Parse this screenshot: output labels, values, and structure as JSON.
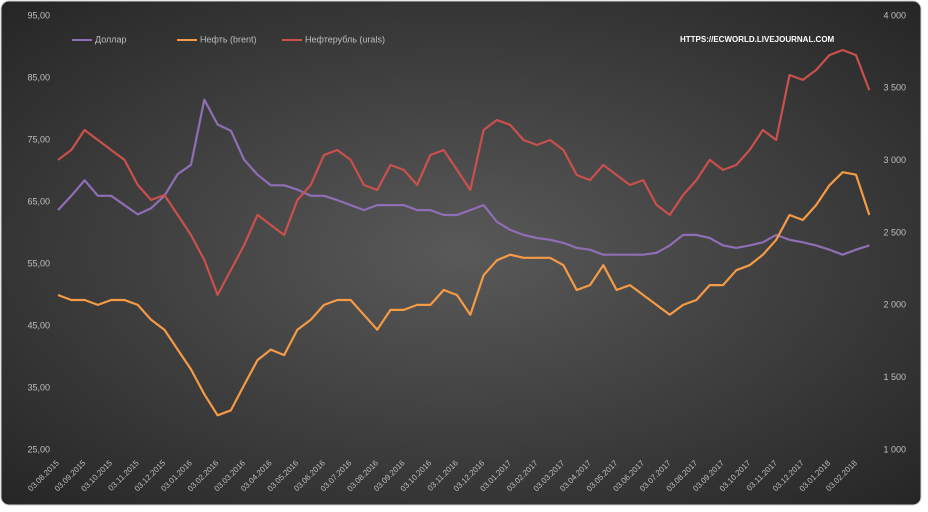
{
  "chart_data": {
    "type": "line",
    "annotation": "HTTPS://ECWORLD.LIVEJOURNAL.COM",
    "categories": [
      "03.08.2015",
      null,
      "03.09.2015",
      null,
      "03.10.2015",
      null,
      "03.11.2015",
      null,
      "03.12.2015",
      null,
      "03.01.2016",
      null,
      "03.02.2016",
      null,
      "03.03.2016",
      null,
      "03.04.2016",
      null,
      "03.05.2016",
      null,
      "03.06.2016",
      null,
      "03.07.2016",
      null,
      "03.08.2016",
      null,
      "03.09.2016",
      null,
      "03.10.2016",
      null,
      "03.11.2016",
      null,
      "03.12.2016",
      null,
      "03.01.2017",
      null,
      "03.02.2017",
      null,
      "03.03.2017",
      null,
      "03.04.2017",
      null,
      "03.05.2017",
      null,
      "03.06.2017",
      null,
      "03.07.2017",
      null,
      "03.08.2017",
      null,
      "03.09.2017",
      null,
      "03.10.2017",
      null,
      "03.11.2017",
      null,
      "03.12.2017",
      null,
      "03.01.2018",
      null,
      "03.02.2018",
      null
    ],
    "series": [
      {
        "name": "Доллар",
        "color": "#8e6fb5",
        "axis": "y",
        "values": [
          63.7,
          66,
          68.5,
          66,
          66,
          64.5,
          63,
          64,
          66,
          69.5,
          71,
          81.5,
          77.5,
          76.5,
          71.8,
          69.4,
          67.7,
          67.7,
          67,
          66,
          66,
          65.3,
          64.5,
          63.7,
          64.5,
          64.5,
          64.5,
          63.7,
          63.7,
          62.9,
          62.9,
          63.7,
          64.5,
          61.8,
          60.5,
          59.7,
          59.2,
          58.9,
          58.4,
          57.6,
          57.3,
          56.5,
          56.5,
          56.5,
          56.5,
          56.8,
          58,
          59.7,
          59.7,
          59.2,
          58,
          57.6,
          58,
          58.5,
          59.7,
          58.9,
          58.5,
          58,
          57.3,
          56.5,
          57.3,
          58
        ]
      },
      {
        "name": "Нефть (brent)",
        "color": "#f59a45",
        "axis": "y",
        "values": [
          50,
          49.2,
          49.2,
          48.4,
          49.2,
          49.2,
          48.4,
          46,
          44.4,
          41.2,
          38,
          34,
          30.6,
          31.4,
          35.5,
          39.5,
          41.2,
          40.3,
          44.4,
          46,
          48.4,
          49.2,
          49.2,
          46.8,
          44.4,
          47.6,
          47.6,
          48.4,
          48.4,
          50.8,
          50,
          46.8,
          53.2,
          55.6,
          56.5,
          56,
          56,
          56,
          54.8,
          50.8,
          51.6,
          54.8,
          50.8,
          51.6,
          50,
          48.4,
          46.8,
          48.4,
          49.2,
          51.6,
          51.6,
          54,
          54.8,
          56.5,
          58.9,
          62.9,
          62.1,
          64.5,
          67.7,
          69.8,
          69.4,
          62.9
        ]
      },
      {
        "name": "Нефтерубль (urals)",
        "color": "#c9504c",
        "axis": "y2",
        "values": [
          3005,
          3074,
          3212,
          3143,
          3074,
          3005,
          2832,
          2728,
          2763,
          2625,
          2486,
          2314,
          2072,
          2245,
          2417,
          2625,
          2555,
          2486,
          2728,
          2832,
          3039,
          3074,
          3005,
          2832,
          2797,
          2970,
          2936,
          2832,
          3039,
          3074,
          2936,
          2797,
          3212,
          3281,
          3247,
          3143,
          3108,
          3143,
          3074,
          2901,
          2866,
          2970,
          2901,
          2832,
          2866,
          2694,
          2625,
          2763,
          2866,
          3005,
          2936,
          2970,
          3074,
          3212,
          3143,
          3592,
          3558,
          3627,
          3730,
          3765,
          3730,
          3488
        ]
      }
    ],
    "ylim": [
      25,
      95
    ],
    "yticks": [
      {
        "value": 25,
        "label": "25,00"
      },
      {
        "value": 35,
        "label": "35,00"
      },
      {
        "value": 45,
        "label": "45,00"
      },
      {
        "value": 55,
        "label": "55,00"
      },
      {
        "value": 65,
        "label": "65,00"
      },
      {
        "value": 75,
        "label": "75,00"
      },
      {
        "value": 85,
        "label": "85,00"
      },
      {
        "value": 95,
        "label": "95,00"
      }
    ],
    "y2lim": [
      1000,
      4000
    ],
    "y2ticks": [
      {
        "value": 1000,
        "label": "1 000"
      },
      {
        "value": 1500,
        "label": "1 500"
      },
      {
        "value": 2000,
        "label": "2 000"
      },
      {
        "value": 2500,
        "label": "2 500"
      },
      {
        "value": 3000,
        "label": "3 000"
      },
      {
        "value": 3500,
        "label": "3 500"
      },
      {
        "value": 4000,
        "label": "4 000"
      }
    ],
    "legend": "top"
  }
}
